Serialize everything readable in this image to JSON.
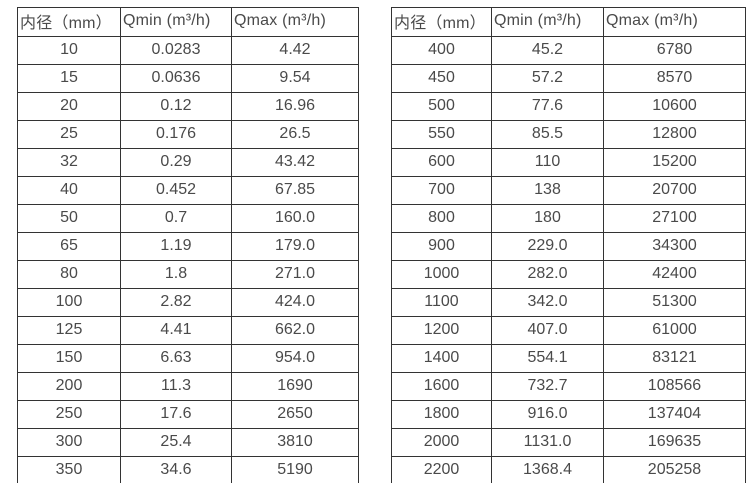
{
  "page": {
    "background": "#ffffff",
    "text_color": "#4a4a4a",
    "border_color": "#333333"
  },
  "tables": [
    {
      "name": "flow-table-small-diameters",
      "headers": [
        "内径（mm）",
        "Qmin (m³/h)",
        "Qmax (m³/h)"
      ],
      "rows": [
        [
          "10",
          "0.0283",
          "4.42"
        ],
        [
          "15",
          "0.0636",
          "9.54"
        ],
        [
          "20",
          "0.12",
          "16.96"
        ],
        [
          "25",
          "0.176",
          "26.5"
        ],
        [
          "32",
          "0.29",
          "43.42"
        ],
        [
          "40",
          "0.452",
          "67.85"
        ],
        [
          "50",
          "0.7",
          "160.0"
        ],
        [
          "65",
          "1.19",
          "179.0"
        ],
        [
          "80",
          "1.8",
          "271.0"
        ],
        [
          "100",
          "2.82",
          "424.0"
        ],
        [
          "125",
          "4.41",
          "662.0"
        ],
        [
          "150",
          "6.63",
          "954.0"
        ],
        [
          "200",
          "11.3",
          "1690"
        ],
        [
          "250",
          "17.6",
          "2650"
        ],
        [
          "300",
          "25.4",
          "3810"
        ],
        [
          "350",
          "34.6",
          "5190"
        ]
      ]
    },
    {
      "name": "flow-table-large-diameters",
      "headers": [
        "内径（mm）",
        "Qmin (m³/h)",
        "Qmax (m³/h)"
      ],
      "rows": [
        [
          "400",
          "45.2",
          "6780"
        ],
        [
          "450",
          "57.2",
          "8570"
        ],
        [
          "500",
          "77.6",
          "10600"
        ],
        [
          "550",
          "85.5",
          "12800"
        ],
        [
          "600",
          "110",
          "15200"
        ],
        [
          "700",
          "138",
          "20700"
        ],
        [
          "800",
          "180",
          "27100"
        ],
        [
          "900",
          "229.0",
          "34300"
        ],
        [
          "1000",
          "282.0",
          "42400"
        ],
        [
          "1100",
          "342.0",
          "51300"
        ],
        [
          "1200",
          "407.0",
          "61000"
        ],
        [
          "1400",
          "554.1",
          "83121"
        ],
        [
          "1600",
          "732.7",
          "108566"
        ],
        [
          "1800",
          "916.0",
          "137404"
        ],
        [
          "2000",
          "1131.0",
          "169635"
        ],
        [
          "2200",
          "1368.4",
          "205258"
        ]
      ]
    }
  ]
}
